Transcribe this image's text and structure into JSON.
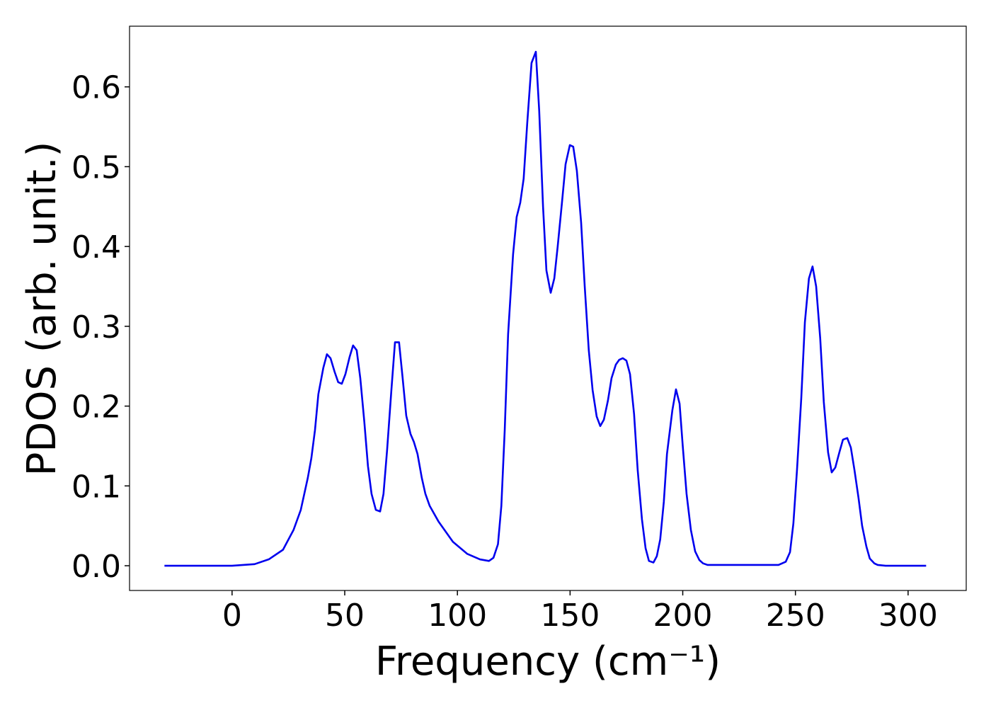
{
  "chart_data": {
    "type": "line",
    "xlabel": "Frequency (cm⁻¹)",
    "ylabel": "PDOS (arb. unit.)",
    "color": "#0000ee",
    "x": [
      -30,
      0,
      10,
      16.3,
      22.6,
      27.3,
      30.5,
      33.6,
      35.2,
      36.8,
      38.3,
      40.5,
      42.1,
      43.7,
      45.5,
      47.1,
      48.7,
      50.3,
      52.2,
      53.7,
      55.3,
      56.9,
      58.7,
      60.3,
      61.9,
      63.8,
      65.7,
      67.2,
      68.8,
      70.7,
      72.3,
      74.1,
      75.7,
      77.3,
      79.2,
      80.7,
      82.3,
      84.2,
      85.8,
      87.7,
      91.7,
      98,
      104.3,
      110,
      114,
      116,
      118,
      119.5,
      121,
      122.5,
      124.7,
      126.3,
      127.9,
      129.4,
      131,
      132.9,
      134.8,
      136.3,
      138,
      139.5,
      141.4,
      143,
      144.5,
      146.4,
      148,
      149.9,
      151.4,
      153,
      154.9,
      156.5,
      158.3,
      160,
      161.8,
      163.4,
      165,
      166.8,
      168.4,
      170.3,
      171.8,
      173.4,
      175,
      176.6,
      178.4,
      180,
      181.9,
      183.5,
      185,
      187,
      188.5,
      190,
      191.6,
      193,
      195.4,
      197,
      198.6,
      200,
      201.7,
      203.6,
      205.5,
      207.4,
      209,
      211,
      242.5,
      245.7,
      247.6,
      249.1,
      250.7,
      252.6,
      254.2,
      256,
      257.6,
      259.2,
      261,
      262.6,
      264.5,
      266.1,
      267.7,
      269.6,
      271.1,
      273,
      274.6,
      276.2,
      278,
      279.6,
      281.5,
      283,
      285,
      286.5,
      290,
      308
    ],
    "y": [
      0,
      0,
      0.002,
      0.008,
      0.02,
      0.045,
      0.07,
      0.11,
      0.135,
      0.17,
      0.215,
      0.248,
      0.265,
      0.26,
      0.243,
      0.23,
      0.228,
      0.24,
      0.262,
      0.276,
      0.27,
      0.235,
      0.18,
      0.125,
      0.09,
      0.07,
      0.068,
      0.09,
      0.145,
      0.22,
      0.28,
      0.28,
      0.235,
      0.188,
      0.165,
      0.155,
      0.14,
      0.11,
      0.09,
      0.075,
      0.055,
      0.03,
      0.015,
      0.008,
      0.006,
      0.01,
      0.027,
      0.075,
      0.17,
      0.29,
      0.39,
      0.437,
      0.455,
      0.485,
      0.555,
      0.63,
      0.644,
      0.57,
      0.45,
      0.37,
      0.342,
      0.36,
      0.4,
      0.455,
      0.503,
      0.527,
      0.525,
      0.495,
      0.43,
      0.35,
      0.27,
      0.22,
      0.187,
      0.175,
      0.183,
      0.207,
      0.235,
      0.252,
      0.258,
      0.26,
      0.257,
      0.24,
      0.19,
      0.12,
      0.058,
      0.022,
      0.006,
      0.004,
      0.012,
      0.033,
      0.08,
      0.14,
      0.195,
      0.221,
      0.203,
      0.15,
      0.09,
      0.045,
      0.018,
      0.007,
      0.003,
      0.001,
      0.001,
      0.005,
      0.017,
      0.053,
      0.12,
      0.21,
      0.305,
      0.36,
      0.375,
      0.35,
      0.285,
      0.205,
      0.142,
      0.117,
      0.123,
      0.143,
      0.158,
      0.16,
      0.148,
      0.12,
      0.085,
      0.05,
      0.024,
      0.009,
      0.003,
      0.001,
      0,
      0
    ],
    "xlim": [
      -45.5,
      325.8
    ],
    "ylim": [
      -0.031,
      0.676
    ],
    "xticks": [
      0,
      50,
      100,
      150,
      200,
      250,
      300
    ],
    "yticks": [
      {
        "value": 0,
        "label": "0.0"
      },
      {
        "value": 0.1,
        "label": "0.1"
      },
      {
        "value": 0.2,
        "label": "0.2"
      },
      {
        "value": 0.3,
        "label": "0.3"
      },
      {
        "value": 0.4,
        "label": "0.4"
      },
      {
        "value": 0.5,
        "label": "0.5"
      },
      {
        "value": 0.6,
        "label": "0.6"
      }
    ]
  }
}
